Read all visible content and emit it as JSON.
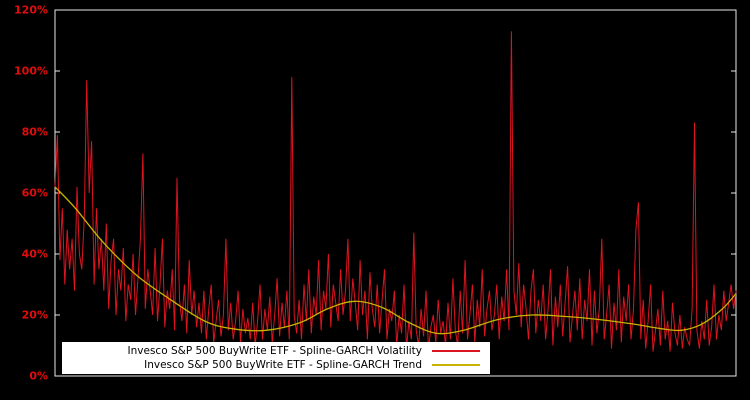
{
  "chart_data": {
    "type": "line",
    "title": "",
    "background": "#000000",
    "axis_color": "#e8e8e8",
    "tick_label_color": "#e00d0d",
    "ylim": [
      0,
      120
    ],
    "grid": false,
    "x_tick_labels_visible": false,
    "y_ticks": [
      0,
      20,
      40,
      60,
      80,
      100,
      120
    ],
    "y_tick_labels": [
      "0%",
      "20%",
      "40%",
      "60%",
      "80%",
      "100%",
      "120%"
    ],
    "legend": {
      "position": "bottom-left-inside",
      "background": "#ffffff"
    },
    "series": [
      {
        "name": "Invesco S&P 500 BuyWrite ETF - Spline-GARCH Volatility",
        "color": "#dc1420",
        "style": "spiky",
        "values": [
          62,
          79,
          38,
          55,
          30,
          48,
          35,
          45,
          28,
          62,
          40,
          35,
          52,
          97,
          60,
          77,
          30,
          55,
          35,
          45,
          28,
          50,
          22,
          38,
          45,
          20,
          35,
          28,
          42,
          18,
          30,
          25,
          40,
          20,
          32,
          45,
          73,
          22,
          35,
          28,
          20,
          42,
          18,
          30,
          45,
          16,
          28,
          22,
          35,
          15,
          65,
          25,
          18,
          30,
          14,
          38,
          20,
          28,
          16,
          24,
          14,
          28,
          12,
          22,
          30,
          11,
          18,
          25,
          13,
          20,
          45,
          15,
          24,
          12,
          18,
          28,
          11,
          22,
          14,
          19,
          12,
          24,
          10,
          18,
          30,
          12,
          22,
          15,
          26,
          11,
          20,
          32,
          13,
          24,
          16,
          28,
          12,
          98,
          20,
          14,
          25,
          12,
          30,
          18,
          35,
          14,
          26,
          20,
          38,
          15,
          28,
          22,
          40,
          16,
          30,
          24,
          18,
          35,
          20,
          28,
          45,
          18,
          32,
          24,
          15,
          38,
          20,
          28,
          12,
          34,
          22,
          16,
          30,
          14,
          25,
          35,
          12,
          22,
          18,
          28,
          10,
          20,
          14,
          30,
          9,
          18,
          12,
          47,
          15,
          10,
          22,
          13,
          28,
          9,
          16,
          20,
          11,
          25,
          14,
          18,
          10,
          24,
          12,
          32,
          15,
          10,
          28,
          14,
          38,
          12,
          20,
          30,
          11,
          25,
          16,
          35,
          13,
          22,
          28,
          15,
          20,
          30,
          12,
          26,
          18,
          35,
          15,
          113,
          28,
          20,
          37,
          16,
          30,
          22,
          12,
          28,
          35,
          14,
          25,
          18,
          30,
          12,
          22,
          35,
          10,
          26,
          16,
          30,
          13,
          24,
          36,
          11,
          20,
          28,
          15,
          32,
          12,
          25,
          18,
          35,
          10,
          28,
          14,
          22,
          45,
          12,
          20,
          30,
          9,
          24,
          15,
          35,
          11,
          26,
          18,
          30,
          12,
          22,
          48,
          57,
          12,
          25,
          9,
          18,
          30,
          8,
          15,
          22,
          10,
          28,
          12,
          18,
          8,
          24,
          14,
          10,
          20,
          9,
          16,
          12,
          10,
          22,
          83,
          15,
          9,
          18,
          12,
          25,
          10,
          16,
          30,
          12,
          20,
          15,
          28,
          18,
          24,
          30,
          22,
          28
        ]
      },
      {
        "name": "Invesco S&P 500 BuyWrite ETF - Spline-GARCH Trend",
        "color": "#c8b400",
        "style": "smooth",
        "points": [
          [
            0,
            62
          ],
          [
            0.03,
            55
          ],
          [
            0.07,
            44
          ],
          [
            0.12,
            33
          ],
          [
            0.17,
            25
          ],
          [
            0.22,
            18
          ],
          [
            0.26,
            15.5
          ],
          [
            0.31,
            15
          ],
          [
            0.36,
            17.5
          ],
          [
            0.4,
            22
          ],
          [
            0.44,
            24.5
          ],
          [
            0.48,
            22.5
          ],
          [
            0.52,
            17.5
          ],
          [
            0.56,
            14
          ],
          [
            0.6,
            15
          ],
          [
            0.65,
            18.5
          ],
          [
            0.7,
            20
          ],
          [
            0.75,
            19.5
          ],
          [
            0.8,
            18.5
          ],
          [
            0.85,
            17
          ],
          [
            0.89,
            15.5
          ],
          [
            0.92,
            15
          ],
          [
            0.95,
            17
          ],
          [
            0.98,
            22
          ],
          [
            1.0,
            27
          ]
        ]
      }
    ]
  }
}
